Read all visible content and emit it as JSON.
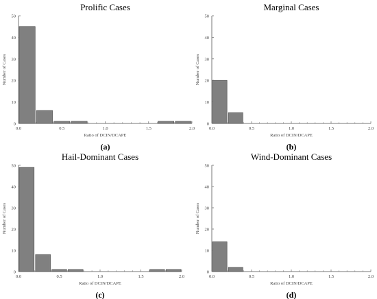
{
  "chart_data": [
    {
      "type": "bar",
      "title": "Prolific Cases",
      "panel_label": "(a)",
      "xlabel": "Ratio of DCIN/DCAPE",
      "ylabel": "Number of Cases",
      "xlim": [
        0,
        2.0
      ],
      "ylim": [
        0,
        50
      ],
      "xticks": [
        "0.0",
        "0.5",
        "1.0",
        "1.5",
        "2.0"
      ],
      "yticks": [
        "0",
        "10",
        "20",
        "30",
        "40",
        "50"
      ],
      "bins": [
        {
          "from": 0.0,
          "to": 0.2
        },
        {
          "from": 0.2,
          "to": 0.4
        },
        {
          "from": 0.4,
          "to": 0.6
        },
        {
          "from": 0.6,
          "to": 0.8
        },
        {
          "from": 0.8,
          "to": 1.0
        },
        {
          "from": 1.0,
          "to": 1.2
        },
        {
          "from": 1.2,
          "to": 1.4
        },
        {
          "from": 1.4,
          "to": 1.6
        },
        {
          "from": 1.6,
          "to": 1.8
        },
        {
          "from": 1.8,
          "to": 2.0
        }
      ],
      "values": [
        45,
        6,
        1,
        1,
        0,
        0,
        0,
        0,
        1,
        1
      ]
    },
    {
      "type": "bar",
      "title": "Marginal Cases",
      "panel_label": "(b)",
      "xlabel": "Ratio of DCIN/DCAPE",
      "ylabel": "Number of Cases",
      "xlim": [
        0,
        2.0
      ],
      "ylim": [
        0,
        50
      ],
      "xticks": [
        "0.0",
        "0.5",
        "1.0",
        "1.5",
        "2.0"
      ],
      "yticks": [
        "0",
        "10",
        "20",
        "30",
        "40",
        "50"
      ],
      "bins": [
        {
          "from": 0.0,
          "to": 0.2
        },
        {
          "from": 0.2,
          "to": 0.4
        },
        {
          "from": 0.4,
          "to": 0.6
        },
        {
          "from": 0.6,
          "to": 0.8
        },
        {
          "from": 0.8,
          "to": 1.0
        },
        {
          "from": 1.0,
          "to": 1.2
        },
        {
          "from": 1.2,
          "to": 1.4
        },
        {
          "from": 1.4,
          "to": 1.6
        },
        {
          "from": 1.6,
          "to": 1.8
        },
        {
          "from": 1.8,
          "to": 2.0
        }
      ],
      "values": [
        20,
        5,
        0,
        0,
        0,
        0,
        0,
        0,
        0,
        0
      ]
    },
    {
      "type": "bar",
      "title": "Hail-Dominant Cases",
      "panel_label": "(c)",
      "xlabel": "Ratio of DCIN/DCAPE",
      "ylabel": "Number of Cases",
      "xlim": [
        0,
        2.0
      ],
      "ylim": [
        0,
        50
      ],
      "xticks": [
        "0.0",
        "0.5",
        "1.0",
        "1.5",
        "2.0"
      ],
      "yticks": [
        "0",
        "10",
        "20",
        "30",
        "40",
        "50"
      ],
      "bins": [
        {
          "from": 0.0,
          "to": 0.2
        },
        {
          "from": 0.2,
          "to": 0.4
        },
        {
          "from": 0.4,
          "to": 0.6
        },
        {
          "from": 0.6,
          "to": 0.8
        },
        {
          "from": 0.8,
          "to": 1.0
        },
        {
          "from": 1.0,
          "to": 1.2
        },
        {
          "from": 1.2,
          "to": 1.4
        },
        {
          "from": 1.4,
          "to": 1.6
        },
        {
          "from": 1.6,
          "to": 1.8
        },
        {
          "from": 1.8,
          "to": 2.0
        }
      ],
      "values": [
        49,
        8,
        1,
        1,
        0,
        0,
        0,
        0,
        1,
        1
      ]
    },
    {
      "type": "bar",
      "title": "Wind-Dominant Cases",
      "panel_label": "(d)",
      "xlabel": "Ratio of DCIN/DCAPE",
      "ylabel": "Number of Cases",
      "xlim": [
        0,
        2.0
      ],
      "ylim": [
        0,
        50
      ],
      "xticks": [
        "0.0",
        "0.5",
        "1.0",
        "1.5",
        "2.0"
      ],
      "yticks": [
        "0",
        "10",
        "20",
        "30",
        "40",
        "50"
      ],
      "bins": [
        {
          "from": 0.0,
          "to": 0.2
        },
        {
          "from": 0.2,
          "to": 0.4
        },
        {
          "from": 0.4,
          "to": 0.6
        },
        {
          "from": 0.6,
          "to": 0.8
        },
        {
          "from": 0.8,
          "to": 1.0
        },
        {
          "from": 1.0,
          "to": 1.2
        },
        {
          "from": 1.2,
          "to": 1.4
        },
        {
          "from": 1.4,
          "to": 1.6
        },
        {
          "from": 1.6,
          "to": 1.8
        },
        {
          "from": 1.8,
          "to": 2.0
        }
      ],
      "values": [
        14,
        2,
        0,
        0,
        0,
        0,
        0,
        0,
        0,
        0
      ]
    }
  ],
  "colors": {
    "bar_fill": "#808080",
    "bar_stroke": "#4a4a4a",
    "axis": "#777777",
    "text": "#000000",
    "tick_text": "#444444"
  }
}
